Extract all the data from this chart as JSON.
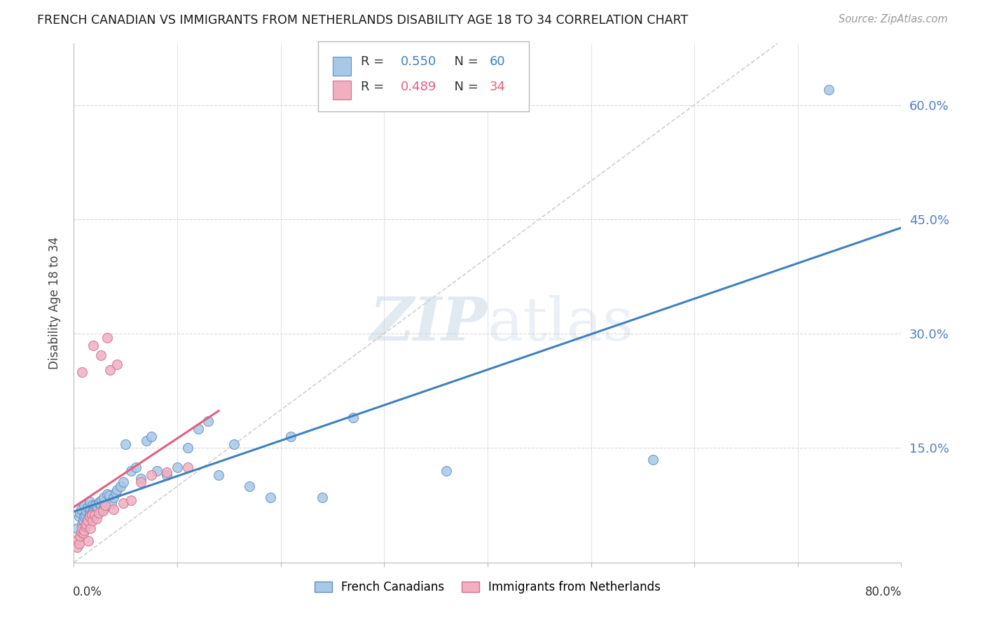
{
  "title": "FRENCH CANADIAN VS IMMIGRANTS FROM NETHERLANDS DISABILITY AGE 18 TO 34 CORRELATION CHART",
  "source": "Source: ZipAtlas.com",
  "ylabel": "Disability Age 18 to 34",
  "legend_label_blue": "French Canadians",
  "legend_label_pink": "Immigrants from Netherlands",
  "watermark": "ZIPatlas",
  "xlim": [
    0.0,
    0.8
  ],
  "ylim": [
    0.0,
    0.68
  ],
  "blue_R": 0.55,
  "blue_N": 60,
  "pink_R": 0.489,
  "pink_N": 34,
  "blue_scatter_color": "#a8c8e8",
  "blue_edge_color": "#6090c0",
  "blue_line_color": "#4080c0",
  "pink_scatter_color": "#f0b0c0",
  "pink_edge_color": "#d07090",
  "pink_line_color": "#e06080",
  "diag_color": "#d0d0d0",
  "grid_color": "#d8d8d8",
  "right_tick_color": "#5080c0",
  "bg_color": "#ffffff",
  "right_yticks": [
    0.15,
    0.3,
    0.45,
    0.6
  ],
  "right_yticklabels": [
    "15.0%",
    "30.0%",
    "45.0%",
    "60.0%"
  ],
  "blue_x": [
    0.003,
    0.005,
    0.006,
    0.007,
    0.008,
    0.009,
    0.01,
    0.01,
    0.011,
    0.012,
    0.013,
    0.014,
    0.015,
    0.015,
    0.016,
    0.017,
    0.018,
    0.018,
    0.019,
    0.02,
    0.021,
    0.022,
    0.023,
    0.024,
    0.025,
    0.026,
    0.027,
    0.028,
    0.029,
    0.03,
    0.032,
    0.034,
    0.036,
    0.038,
    0.04,
    0.042,
    0.045,
    0.048,
    0.05,
    0.055,
    0.06,
    0.065,
    0.07,
    0.075,
    0.08,
    0.09,
    0.1,
    0.11,
    0.12,
    0.13,
    0.14,
    0.155,
    0.17,
    0.19,
    0.21,
    0.24,
    0.27,
    0.36,
    0.56,
    0.73
  ],
  "blue_y": [
    0.045,
    0.06,
    0.065,
    0.07,
    0.05,
    0.055,
    0.06,
    0.075,
    0.062,
    0.068,
    0.072,
    0.058,
    0.065,
    0.08,
    0.07,
    0.065,
    0.06,
    0.075,
    0.068,
    0.07,
    0.075,
    0.068,
    0.072,
    0.078,
    0.08,
    0.075,
    0.082,
    0.07,
    0.085,
    0.072,
    0.09,
    0.088,
    0.078,
    0.085,
    0.092,
    0.095,
    0.1,
    0.105,
    0.155,
    0.12,
    0.125,
    0.11,
    0.16,
    0.165,
    0.12,
    0.115,
    0.125,
    0.15,
    0.175,
    0.185,
    0.115,
    0.155,
    0.1,
    0.085,
    0.165,
    0.085,
    0.19,
    0.12,
    0.135,
    0.62
  ],
  "pink_x": [
    0.003,
    0.004,
    0.005,
    0.006,
    0.007,
    0.008,
    0.008,
    0.009,
    0.01,
    0.011,
    0.012,
    0.013,
    0.014,
    0.015,
    0.016,
    0.017,
    0.018,
    0.019,
    0.02,
    0.022,
    0.024,
    0.026,
    0.028,
    0.03,
    0.032,
    0.035,
    0.038,
    0.042,
    0.048,
    0.055,
    0.065,
    0.075,
    0.09,
    0.11
  ],
  "pink_y": [
    0.02,
    0.03,
    0.025,
    0.035,
    0.04,
    0.045,
    0.25,
    0.038,
    0.042,
    0.048,
    0.05,
    0.055,
    0.028,
    0.06,
    0.045,
    0.062,
    0.055,
    0.285,
    0.062,
    0.058,
    0.065,
    0.272,
    0.068,
    0.075,
    0.295,
    0.252,
    0.07,
    0.26,
    0.078,
    0.082,
    0.105,
    0.115,
    0.118,
    0.125
  ]
}
